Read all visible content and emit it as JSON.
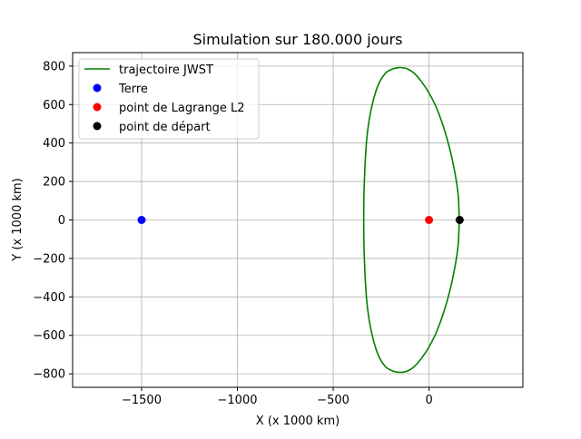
{
  "chart_data": {
    "type": "line",
    "title": "Simulation sur 180.000 jours",
    "xlabel": "X (x 1000 km)",
    "ylabel": "Y (x 1000 km)",
    "xlim": [
      -1860,
      490
    ],
    "ylim": [
      -870,
      870
    ],
    "xticks": [
      -1500,
      -1000,
      -500,
      0
    ],
    "xtick_labels": [
      "−1500",
      "−1000",
      "−500",
      "0"
    ],
    "yticks": [
      -800,
      -600,
      -400,
      -200,
      0,
      200,
      400,
      600,
      800
    ],
    "ytick_labels": [
      "−800",
      "−600",
      "−400",
      "−200",
      "0",
      "200",
      "400",
      "600",
      "800"
    ],
    "grid": true,
    "legend_position": "top-left",
    "trajectory": {
      "name": "trajectoire JWST",
      "color": "#008000",
      "x": [
        158,
        150,
        120,
        80,
        40,
        0,
        -40,
        -80,
        -120,
        -155,
        -190,
        -230,
        -270,
        -305,
        -325,
        -335,
        -340,
        -340,
        -335,
        -325,
        -305,
        -270,
        -230,
        -190,
        -155,
        -120,
        -80,
        -40,
        0,
        40,
        80,
        120,
        150,
        158
      ],
      "y": [
        0,
        150,
        320,
        470,
        580,
        660,
        720,
        765,
        788,
        792,
        785,
        760,
        690,
        560,
        420,
        260,
        100,
        -100,
        -260,
        -420,
        -560,
        -690,
        -760,
        -785,
        -792,
        -788,
        -765,
        -720,
        -660,
        -580,
        -470,
        -320,
        -150,
        0
      ]
    },
    "points": [
      {
        "name": "Terre",
        "x": -1500,
        "y": 0,
        "color": "#0000ff"
      },
      {
        "name": "point de Lagrange L2",
        "x": 0,
        "y": 0,
        "color": "#ff0000"
      },
      {
        "name": "point de départ",
        "x": 160,
        "y": 0,
        "color": "#000000"
      }
    ]
  }
}
